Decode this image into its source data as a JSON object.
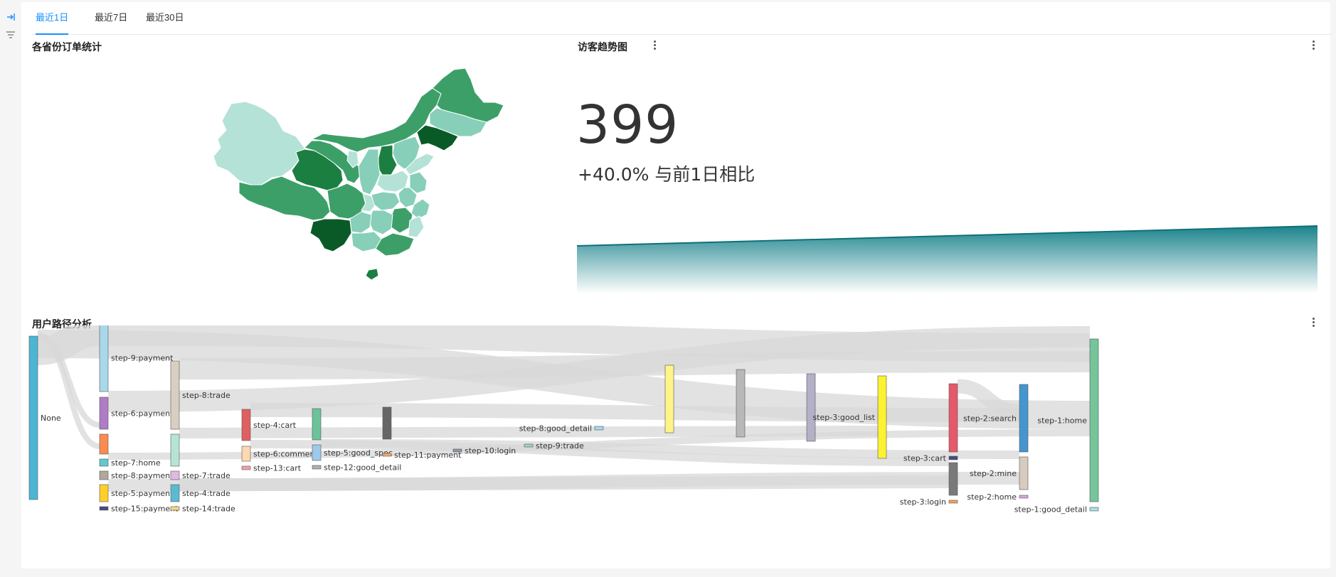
{
  "tabs": [
    {
      "label": "最近1日",
      "active": true
    },
    {
      "label": "最近7日",
      "active": false
    },
    {
      "label": "最近30日",
      "active": false
    }
  ],
  "rail": {
    "icons": [
      "collapse-icon",
      "filter-icon"
    ]
  },
  "province_card": {
    "title": "各省份订单统计",
    "palette": [
      "#b4e2d6",
      "#87cfb8",
      "#3d9f68",
      "#1b7f41",
      "#0a5a28"
    ]
  },
  "visitor_card": {
    "title": "访客趋势图",
    "value": "399",
    "compare_text": "+40.0% 与前1日相比",
    "trend_color": "#0f7d86",
    "trend_values": [
      95,
      399
    ]
  },
  "path_card": {
    "title": "用户路径分析",
    "nodes": [
      {
        "id": "none",
        "label": "None",
        "color": "#4bb6d4"
      },
      {
        "id": "s9pay",
        "label": "step-9:payment",
        "color": "#a8d8ea"
      },
      {
        "id": "s6pay",
        "label": "step-6:payment",
        "color": "#b07cc6"
      },
      {
        "id": "s7orange",
        "label": "",
        "color": "#fb8b4f"
      },
      {
        "id": "s7home",
        "label": "step-7:home",
        "color": "#5fc9d0"
      },
      {
        "id": "s8pay",
        "label": "step-8:payment",
        "color": "#b0a89a"
      },
      {
        "id": "s5pay",
        "label": "step-5:payment",
        "color": "#fecf2a"
      },
      {
        "id": "s15pay",
        "label": "step-15:payment",
        "color": "#4a4a7a"
      },
      {
        "id": "s8trade",
        "label": "step-8:trade",
        "color": "#d8cfc0"
      },
      {
        "id": "s8mint",
        "label": "",
        "color": "#b7e4d2"
      },
      {
        "id": "s7trade",
        "label": "step-7:trade",
        "color": "#e3b9e0"
      },
      {
        "id": "s4trade",
        "label": "step-4:trade",
        "color": "#5bbad0"
      },
      {
        "id": "s14trade",
        "label": "step-14:trade",
        "color": "#f5d97a"
      },
      {
        "id": "s4cart",
        "label": "step-4:cart",
        "color": "#e06060"
      },
      {
        "id": "s6comment",
        "label": "step-6:comment",
        "color": "#fdd8b0"
      },
      {
        "id": "s13cart",
        "label": "step-13:cart",
        "color": "#f0a0b0"
      },
      {
        "id": "s5green",
        "label": "",
        "color": "#6cc39a"
      },
      {
        "id": "s5spec",
        "label": "step-5:good_spec",
        "color": "#9ec9ea"
      },
      {
        "id": "s12detail",
        "label": "step-12:good_detail",
        "color": "#b0b0b0"
      },
      {
        "id": "s6dark",
        "label": "",
        "color": "#666666"
      },
      {
        "id": "s11pay",
        "label": "step-11:payment",
        "color": "#f6a86a"
      },
      {
        "id": "s10login",
        "label": "step-10:login",
        "color": "#8e98a8"
      },
      {
        "id": "s8detail",
        "label": "step-8:good_detail",
        "color": "#a8d8ea"
      },
      {
        "id": "s9trade",
        "label": "step-9:trade",
        "color": "#9ed6b8"
      },
      {
        "id": "s7yellow",
        "label": "",
        "color": "#fff38a"
      },
      {
        "id": "s6grey",
        "label": "",
        "color": "#b8b8b8"
      },
      {
        "id": "s5lav",
        "label": "",
        "color": "#b3b0c8"
      },
      {
        "id": "s3list",
        "label": "step-3:good_list",
        "color": "#fcf233"
      },
      {
        "id": "s3red",
        "label": "",
        "color": "#e45a6a"
      },
      {
        "id": "s3cart",
        "label": "step-3:cart",
        "color": "#4a4a7a"
      },
      {
        "id": "s3grey",
        "label": "",
        "color": "#7a7a7a"
      },
      {
        "id": "s3login",
        "label": "step-3:login",
        "color": "#f3a455"
      },
      {
        "id": "s2search",
        "label": "step-2:search",
        "color": "#4595cf"
      },
      {
        "id": "s2mine",
        "label": "step-2:mine",
        "color": "#d6cbbd"
      },
      {
        "id": "s2home",
        "label": "step-2:home",
        "color": "#d4a8dc"
      },
      {
        "id": "s1home",
        "label": "step-1:home",
        "color": "#76c49a"
      },
      {
        "id": "s1detail",
        "label": "step-1:good_detail",
        "color": "#a8e0e6"
      }
    ]
  }
}
